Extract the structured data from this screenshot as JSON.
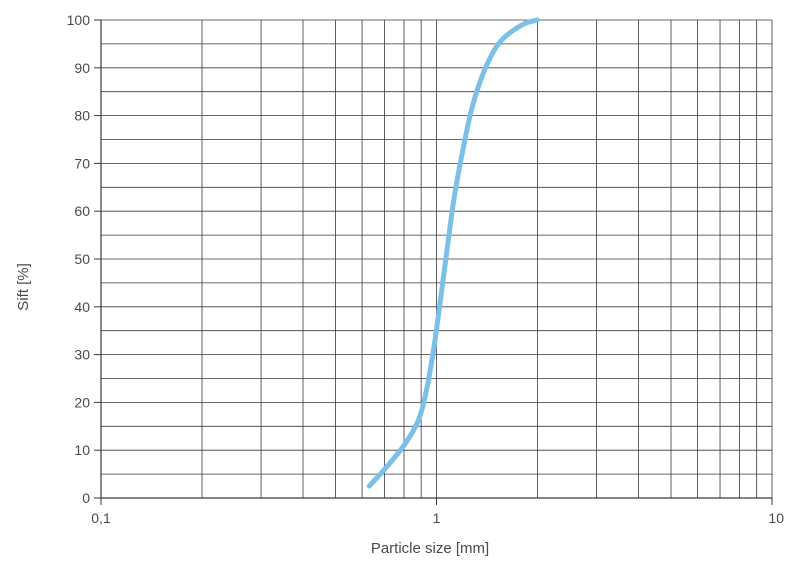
{
  "chart_data": {
    "type": "line",
    "title": "",
    "xlabel": "Particle size [mm]",
    "ylabel": "Sift [%]",
    "x_scale": "log",
    "xlim": [
      0.1,
      10
    ],
    "ylim": [
      0,
      100
    ],
    "x_ticks": [
      {
        "value": 0.1,
        "label": "0,1"
      },
      {
        "value": 1,
        "label": "1"
      },
      {
        "value": 10,
        "label": "10"
      }
    ],
    "y_ticks": [
      {
        "value": 0,
        "label": "0"
      },
      {
        "value": 10,
        "label": "10"
      },
      {
        "value": 20,
        "label": "20"
      },
      {
        "value": 30,
        "label": "30"
      },
      {
        "value": 40,
        "label": "40"
      },
      {
        "value": 50,
        "label": "50"
      },
      {
        "value": 60,
        "label": "60"
      },
      {
        "value": 70,
        "label": "70"
      },
      {
        "value": 80,
        "label": "80"
      },
      {
        "value": 90,
        "label": "90"
      },
      {
        "value": 100,
        "label": "100"
      }
    ],
    "grid": true,
    "legend": "none",
    "series": [
      {
        "color": "#7cc0e8",
        "x": [
          0.63,
          0.7,
          0.8,
          0.88,
          0.93,
          0.98,
          1.03,
          1.08,
          1.13,
          1.2,
          1.28,
          1.4,
          1.55,
          1.8,
          2.0
        ],
        "y": [
          2.5,
          6,
          11,
          16,
          22,
          31,
          42,
          53,
          63,
          73,
          82,
          90,
          95.5,
          99,
          100
        ]
      }
    ]
  }
}
